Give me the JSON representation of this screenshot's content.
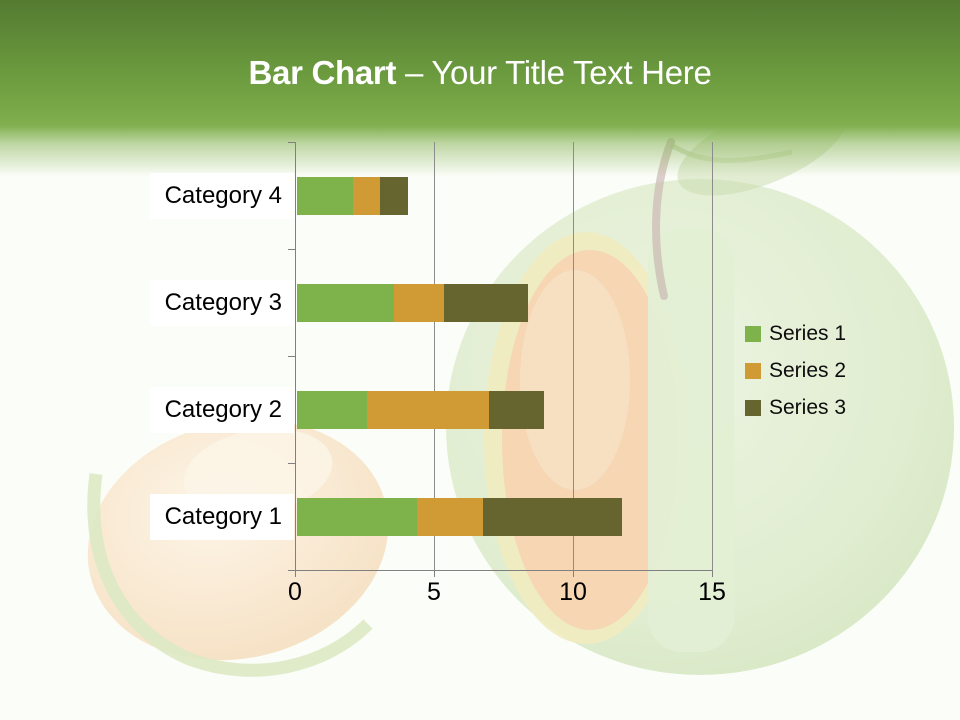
{
  "slide": {
    "title_bold": "Bar Chart",
    "title_rest": " – Your Title Text Here",
    "header_gradient_top": "#547b31",
    "header_gradient_bottom": "#82b050",
    "background_illustration": "faded green apple with orange wedge cut and orange slice"
  },
  "chart_data": {
    "type": "bar",
    "orientation": "horizontal",
    "stacked": true,
    "title": "Bar Chart – Your Title Text Here",
    "categories": [
      "Category 1",
      "Category 2",
      "Category 3",
      "Category 4"
    ],
    "series": [
      {
        "name": "Series 1",
        "color": "#7db34a",
        "values": [
          4.3,
          2.5,
          3.5,
          2
        ]
      },
      {
        "name": "Series 2",
        "color": "#d09a35",
        "values": [
          2.4,
          4.4,
          1.8,
          1
        ]
      },
      {
        "name": "Series 3",
        "color": "#67652f",
        "values": [
          5,
          2,
          3,
          1
        ]
      }
    ],
    "x_ticks": [
      0,
      5,
      10,
      15
    ],
    "xlim": [
      0,
      15
    ],
    "xlabel": "",
    "ylabel": "",
    "grid": true,
    "legend_position": "right",
    "axis_color": "#808080",
    "label_text_color": "#000000"
  }
}
